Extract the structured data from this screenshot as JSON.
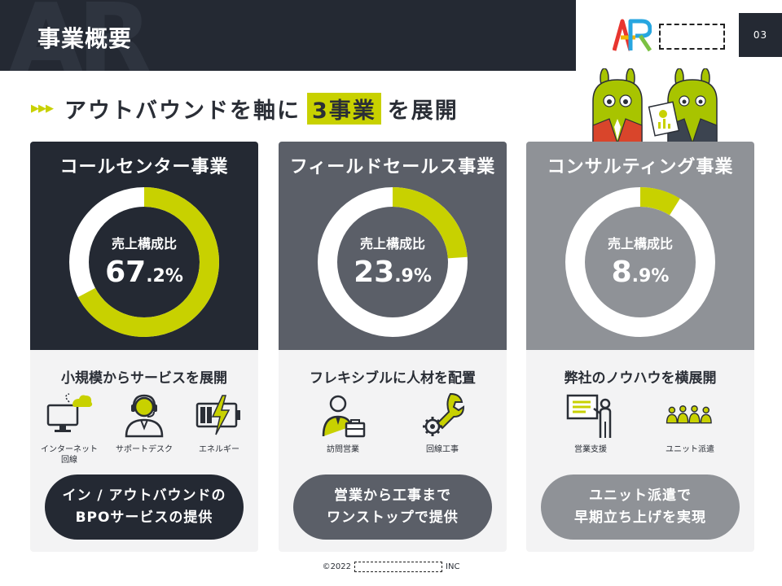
{
  "header": {
    "title": "事業概要",
    "page_number": "03"
  },
  "tagline": {
    "before": "アウトバウンドを軸に",
    "highlight": "3事業",
    "after": "を展開"
  },
  "cards": [
    {
      "title": "コールセンター事業",
      "ratio_label": "売上構成比",
      "ratio_int": "67",
      "ratio_dec": ".2",
      "ratio_unit": "%",
      "share": 0.672,
      "subtitle": "小規模からサービスを展開",
      "icons": [
        {
          "icon": "computer-cloud-icon",
          "label": "インターネット\n回線"
        },
        {
          "icon": "headset-operator-icon",
          "label": "サポートデスク"
        },
        {
          "icon": "battery-bolt-icon",
          "label": "エネルギー"
        }
      ],
      "pill": [
        "イン / アウトバウンドの",
        "BPOサービスの提供"
      ]
    },
    {
      "title": "フィールドセールス事業",
      "ratio_label": "売上構成比",
      "ratio_int": "23",
      "ratio_dec": ".9",
      "ratio_unit": "%",
      "share": 0.239,
      "subtitle": "フレキシブルに人材を配置",
      "icons": [
        {
          "icon": "businessperson-briefcase-icon",
          "label": "訪問営業"
        },
        {
          "icon": "wrench-gear-icon",
          "label": "回線工事"
        }
      ],
      "pill": [
        "営業から工事まで",
        "ワンストップで提供"
      ]
    },
    {
      "title": "コンサルティング事業",
      "ratio_label": "売上構成比",
      "ratio_int": "8",
      "ratio_dec": ".9",
      "ratio_unit": "%",
      "share": 0.089,
      "subtitle": "弊社のノウハウを横展開",
      "icons": [
        {
          "icon": "presentation-board-icon",
          "label": "営業支援"
        },
        {
          "icon": "team-group-icon",
          "label": "ユニット派遣"
        }
      ],
      "pill": [
        "ユニット派遣で",
        "早期立ち上げを実現"
      ]
    }
  ],
  "footer": {
    "copyright": "©2022",
    "suffix": "INC"
  },
  "colors": {
    "accent": "#c8d100",
    "dark": "#242933",
    "mid": "#5b5f68",
    "light": "#8f9297",
    "ring": "#ffffff"
  }
}
